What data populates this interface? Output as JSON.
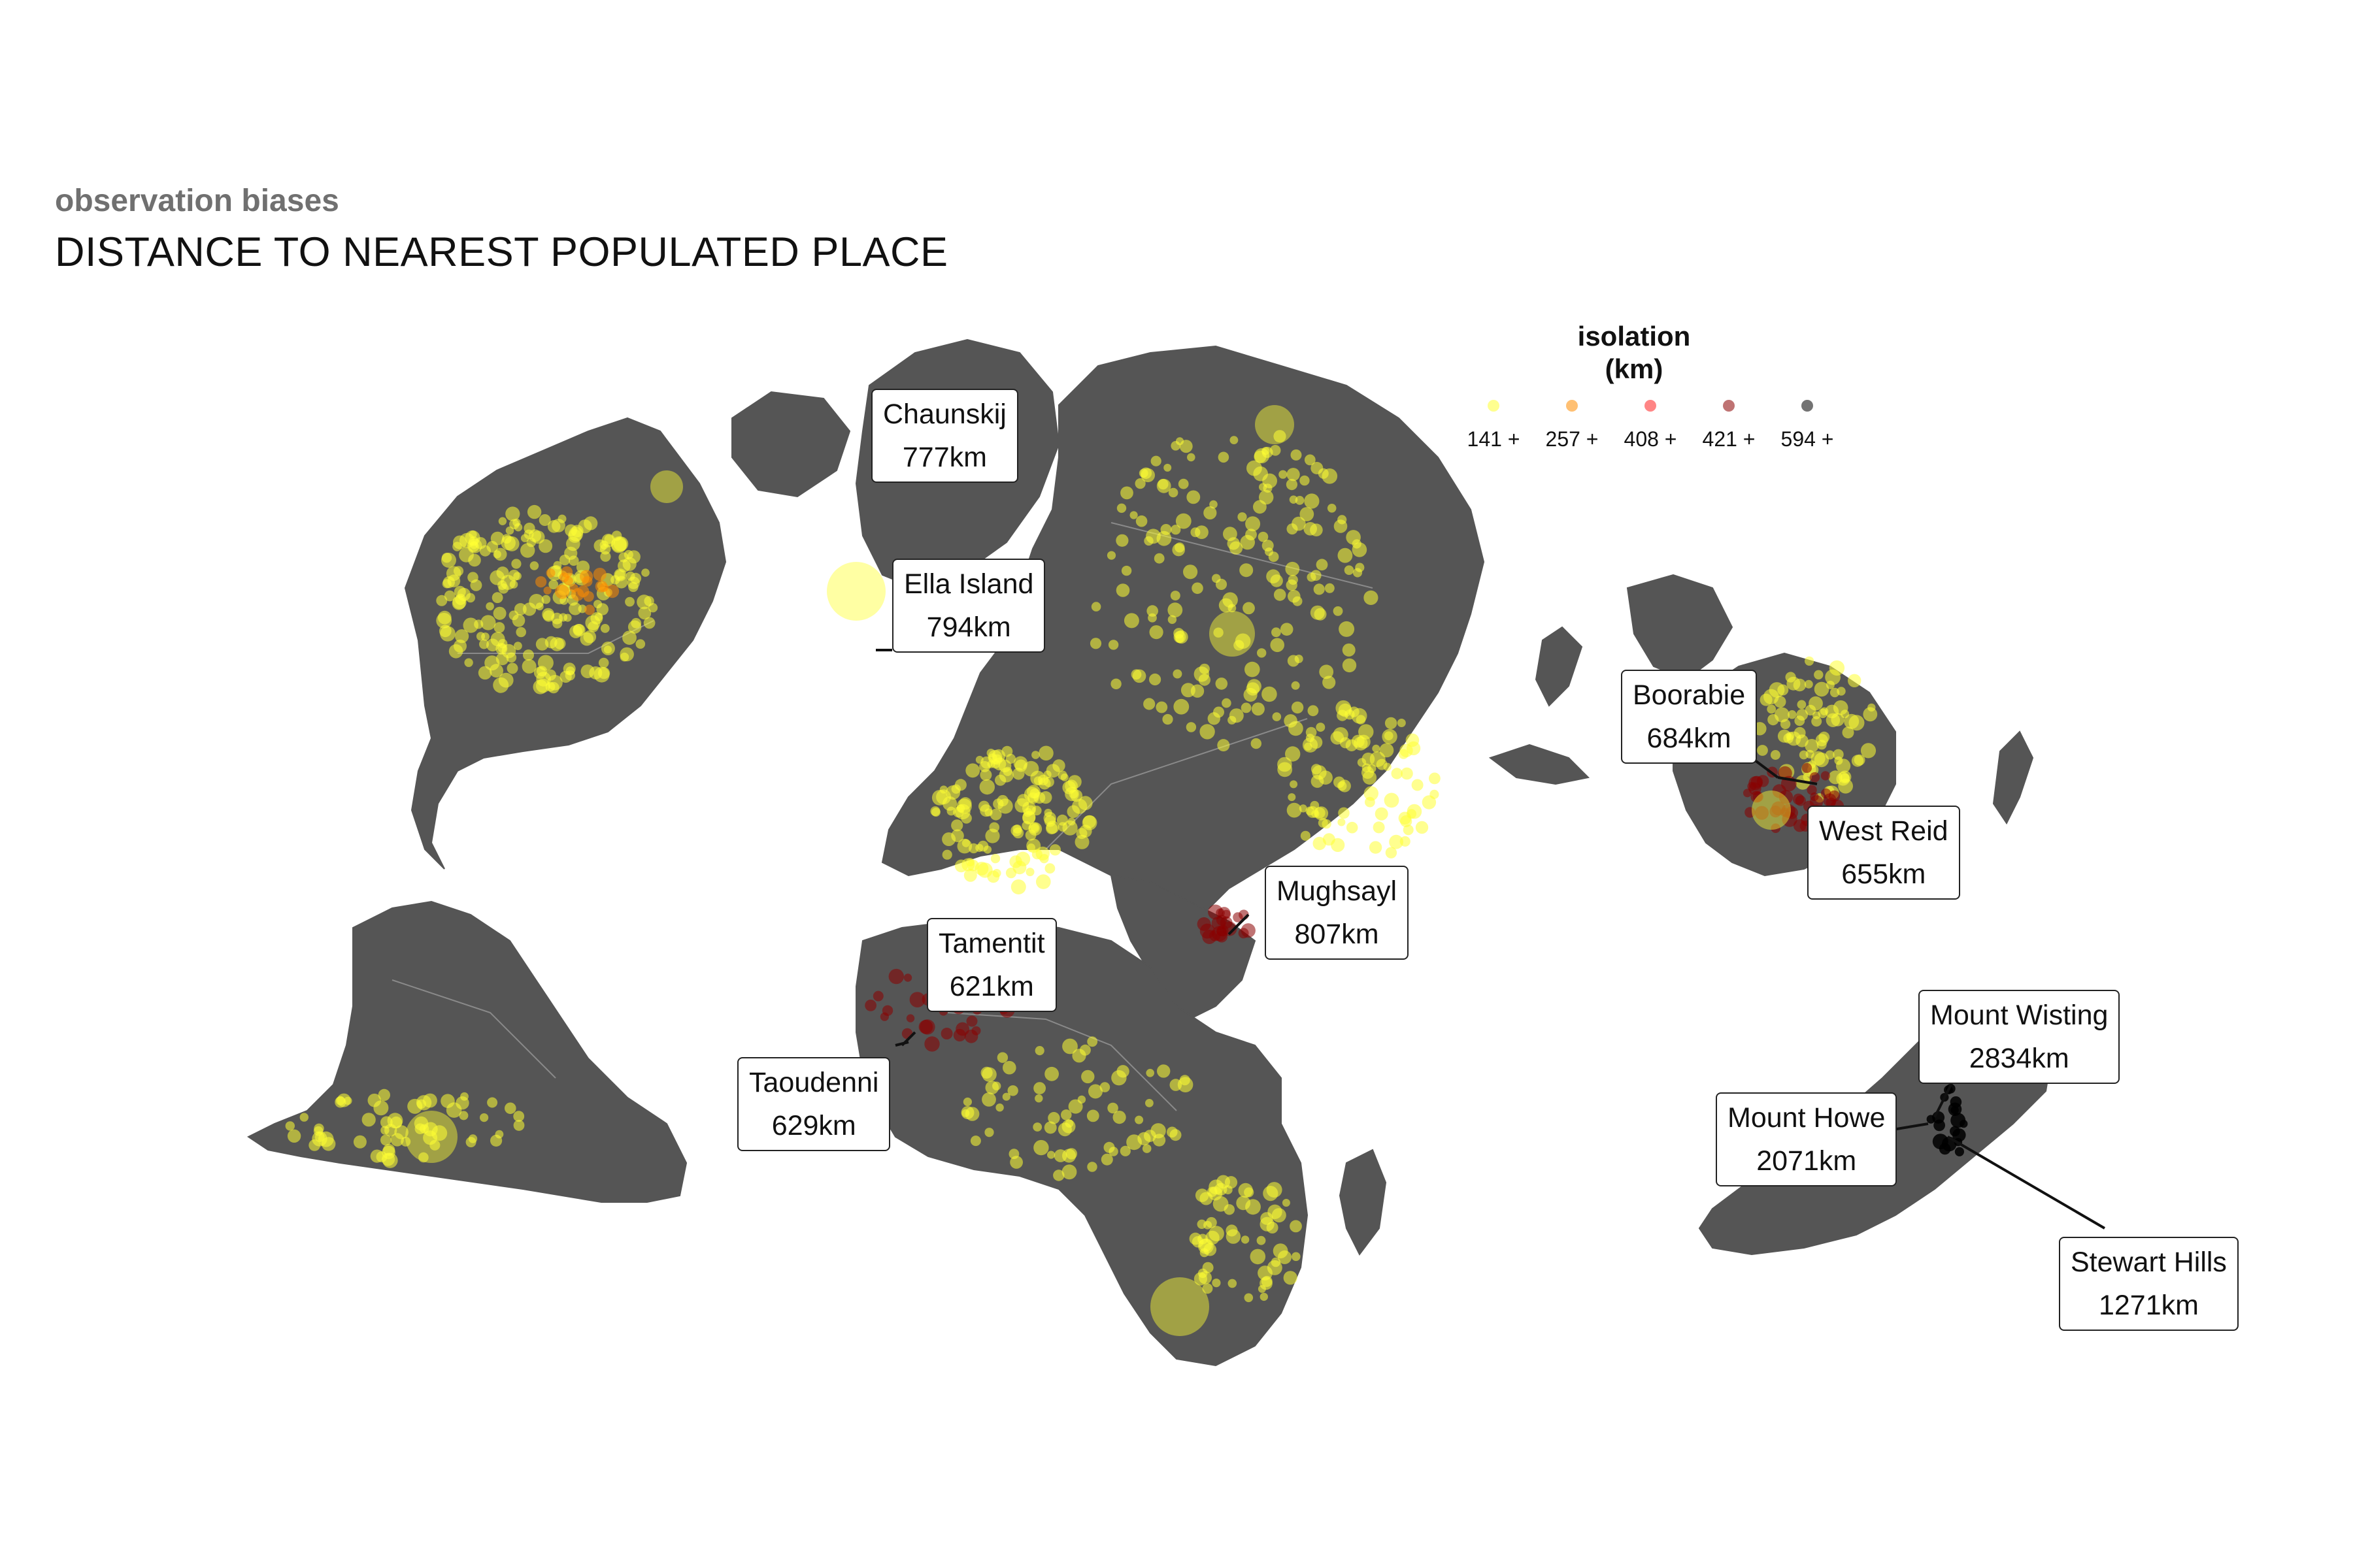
{
  "header": {
    "subtitle": "observation biases",
    "title": "DISTANCE TO NEAREST POPULATED PLACE"
  },
  "legend": {
    "title_line1": "isolation",
    "title_line2": "(km)",
    "items": [
      {
        "label": "141 +",
        "color": "#ffff33"
      },
      {
        "label": "257 +",
        "color": "#ff8c00"
      },
      {
        "label": "408 +",
        "color": "#ff2020"
      },
      {
        "label": "421 +",
        "color": "#8b0000"
      },
      {
        "label": "594 +",
        "color": "#000000"
      }
    ]
  },
  "colors": {
    "land": "#555555",
    "borders": "#8a8a8a",
    "background": "#ffffff"
  },
  "callouts": [
    {
      "name": "Chaunskij",
      "distance": "777km"
    },
    {
      "name": "Ella Island",
      "distance": "794km"
    },
    {
      "name": "Boorabie",
      "distance": "684km"
    },
    {
      "name": "West Reid",
      "distance": "655km"
    },
    {
      "name": "Mughsayl",
      "distance": "807km"
    },
    {
      "name": "Tamentit",
      "distance": "621km"
    },
    {
      "name": "Taoudenni",
      "distance": "629km"
    },
    {
      "name": "Mount Wisting",
      "distance": "2834km"
    },
    {
      "name": "Mount Howe",
      "distance": "2071km"
    },
    {
      "name": "Stewart Hills",
      "distance": "1271km"
    }
  ]
}
